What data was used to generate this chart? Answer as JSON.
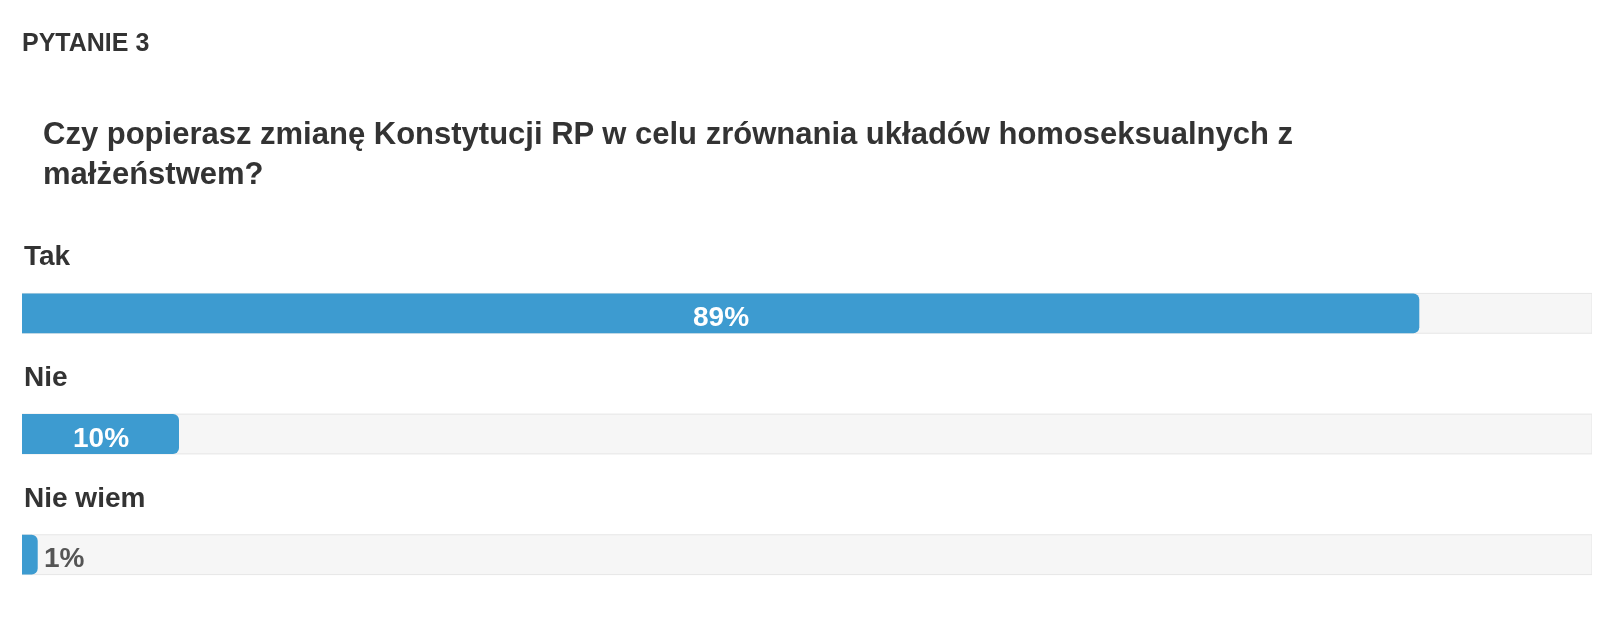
{
  "chart_data": {
    "type": "bar",
    "orientation": "horizontal",
    "title": "PYTANIE 3",
    "subtitle": "Czy popierasz zmianę Konstytucji RP w celu zrównania układów homoseksualnych z\nmałżeństwem?",
    "categories": [
      "Tak",
      "Nie",
      "Nie wiem"
    ],
    "values": [
      89,
      10,
      1
    ],
    "value_labels": [
      "89%",
      "10%",
      "1%"
    ],
    "color": "#3d9bd0",
    "xlim": [
      0,
      100
    ],
    "tick_labels": false,
    "grid": false,
    "legend": false
  }
}
